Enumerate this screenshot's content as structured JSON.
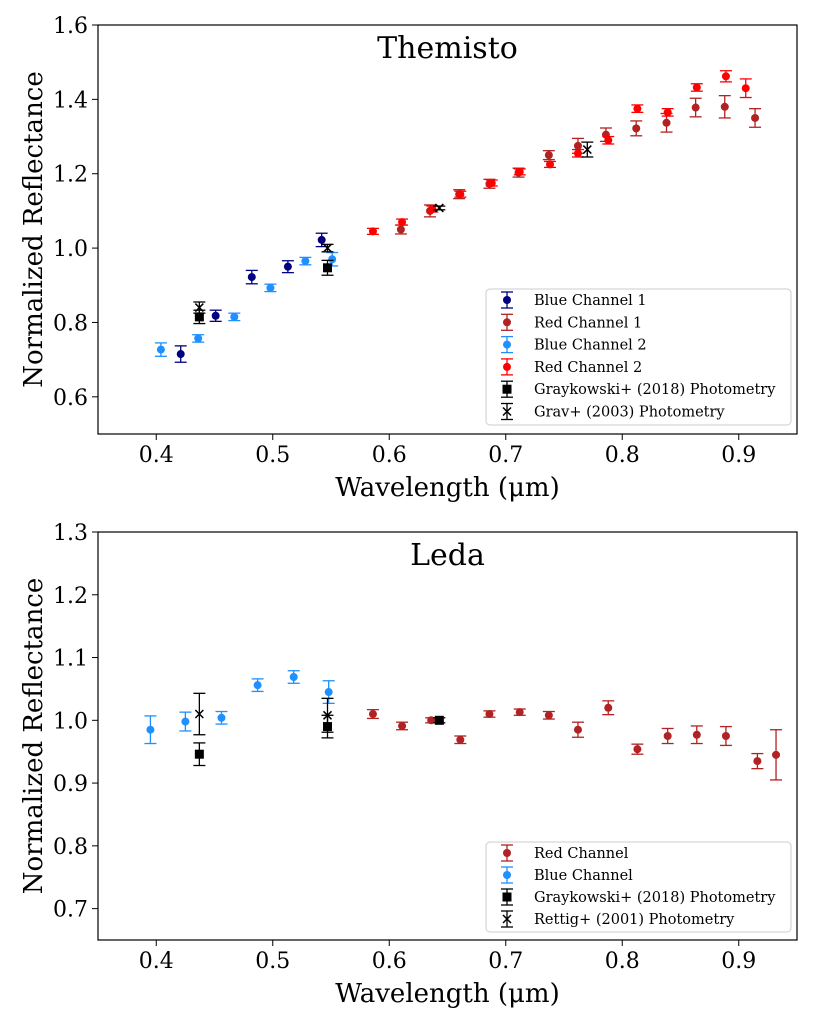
{
  "chart_data": [
    {
      "type": "scatter",
      "title": "Themisto",
      "xlabel": "Wavelength (μm)",
      "ylabel": "Normalized Reflectance",
      "xlim": [
        0.35,
        0.95
      ],
      "ylim": [
        0.5,
        1.6
      ],
      "xticks": [
        "0.4",
        "0.5",
        "0.6",
        "0.7",
        "0.8",
        "0.9"
      ],
      "yticks": [
        "0.6",
        "0.8",
        "1.0",
        "1.2",
        "1.4",
        "1.6"
      ],
      "grid": false,
      "legend_position": "lower-right",
      "series": [
        {
          "name": "Blue Channel 1",
          "color": "#000080",
          "marker": "circle",
          "points": [
            [
              0.421,
              0.715,
              0.022
            ],
            [
              0.451,
              0.818,
              0.015
            ],
            [
              0.482,
              0.922,
              0.018
            ],
            [
              0.513,
              0.95,
              0.016
            ],
            [
              0.542,
              1.022,
              0.018
            ]
          ]
        },
        {
          "name": "Red Channel 1",
          "color": "#b22222",
          "marker": "circle",
          "points": [
            [
              0.61,
              1.05,
              0.012
            ],
            [
              0.635,
              1.1,
              0.016
            ],
            [
              0.66,
              1.145,
              0.012
            ],
            [
              0.686,
              1.173,
              0.012
            ],
            [
              0.711,
              1.203,
              0.012
            ],
            [
              0.737,
              1.25,
              0.012
            ],
            [
              0.762,
              1.275,
              0.02
            ],
            [
              0.786,
              1.305,
              0.018
            ],
            [
              0.812,
              1.322,
              0.02
            ],
            [
              0.838,
              1.337,
              0.025
            ],
            [
              0.863,
              1.378,
              0.025
            ],
            [
              0.888,
              1.38,
              0.03
            ],
            [
              0.914,
              1.35,
              0.025
            ]
          ]
        },
        {
          "name": "Blue Channel 2",
          "color": "#1e90ff",
          "marker": "circle",
          "points": [
            [
              0.404,
              0.727,
              0.018
            ],
            [
              0.436,
              0.757,
              0.01
            ],
            [
              0.467,
              0.815,
              0.01
            ],
            [
              0.498,
              0.893,
              0.01
            ],
            [
              0.528,
              0.965,
              0.01
            ],
            [
              0.551,
              0.97,
              0.018
            ]
          ]
        },
        {
          "name": "Red Channel 2",
          "color": "#ff0000",
          "marker": "circle",
          "points": [
            [
              0.586,
              1.045,
              0.008
            ],
            [
              0.611,
              1.07,
              0.008
            ],
            [
              0.637,
              1.105,
              0.008
            ],
            [
              0.661,
              1.145,
              0.008
            ],
            [
              0.688,
              1.175,
              0.008
            ],
            [
              0.712,
              1.205,
              0.008
            ],
            [
              0.738,
              1.225,
              0.008
            ],
            [
              0.762,
              1.255,
              0.01
            ],
            [
              0.788,
              1.29,
              0.01
            ],
            [
              0.813,
              1.375,
              0.01
            ],
            [
              0.839,
              1.365,
              0.01
            ],
            [
              0.864,
              1.432,
              0.01
            ],
            [
              0.889,
              1.462,
              0.015
            ],
            [
              0.906,
              1.43,
              0.025
            ]
          ]
        },
        {
          "name": "Graykowski+ (2018) Photometry",
          "color": "#000000",
          "marker": "square",
          "points": [
            [
              0.437,
              0.815,
              0.018
            ],
            [
              0.547,
              0.947,
              0.02
            ]
          ]
        },
        {
          "name": "Grav+ (2003) Photometry",
          "color": "#000000",
          "marker": "x",
          "points": [
            [
              0.437,
              0.84,
              0.015
            ],
            [
              0.547,
              1.0,
              0.01
            ],
            [
              0.643,
              1.108,
              0.005
            ],
            [
              0.77,
              1.265,
              0.02
            ]
          ]
        }
      ]
    },
    {
      "type": "scatter",
      "title": "Leda",
      "xlabel": "Wavelength (μm)",
      "ylabel": "Normalized Reflectance",
      "xlim": [
        0.35,
        0.95
      ],
      "ylim": [
        0.65,
        1.3
      ],
      "xticks": [
        "0.4",
        "0.5",
        "0.6",
        "0.7",
        "0.8",
        "0.9"
      ],
      "yticks": [
        "0.7",
        "0.8",
        "0.9",
        "1.0",
        "1.1",
        "1.2",
        "1.3"
      ],
      "grid": false,
      "legend_position": "lower-right",
      "series": [
        {
          "name": "Red Channel",
          "color": "#b22222",
          "marker": "circle",
          "points": [
            [
              0.586,
              1.01,
              0.007
            ],
            [
              0.611,
              0.991,
              0.006
            ],
            [
              0.636,
              1.0,
              0.004
            ],
            [
              0.661,
              0.969,
              0.006
            ],
            [
              0.686,
              1.01,
              0.005
            ],
            [
              0.712,
              1.013,
              0.005
            ],
            [
              0.737,
              1.008,
              0.006
            ],
            [
              0.762,
              0.985,
              0.012
            ],
            [
              0.788,
              1.02,
              0.011
            ],
            [
              0.813,
              0.954,
              0.008
            ],
            [
              0.839,
              0.975,
              0.012
            ],
            [
              0.864,
              0.977,
              0.014
            ],
            [
              0.889,
              0.975,
              0.015
            ],
            [
              0.916,
              0.935,
              0.012
            ],
            [
              0.932,
              0.945,
              0.04
            ]
          ]
        },
        {
          "name": "Blue Channel",
          "color": "#1e90ff",
          "marker": "circle",
          "points": [
            [
              0.395,
              0.985,
              0.022
            ],
            [
              0.425,
              0.998,
              0.015
            ],
            [
              0.456,
              1.004,
              0.01
            ],
            [
              0.487,
              1.056,
              0.01
            ],
            [
              0.518,
              1.069,
              0.01
            ],
            [
              0.548,
              1.045,
              0.018
            ]
          ]
        },
        {
          "name": "Graykowski+ (2018) Photometry",
          "color": "#000000",
          "marker": "square",
          "points": [
            [
              0.437,
              0.946,
              0.018
            ],
            [
              0.547,
              0.99,
              0.018
            ],
            [
              0.643,
              1.0,
              0.004
            ]
          ]
        },
        {
          "name": "Rettig+ (2001) Photometry",
          "color": "#000000",
          "marker": "x",
          "points": [
            [
              0.437,
              1.01,
              0.033
            ],
            [
              0.547,
              1.008,
              0.027
            ]
          ]
        }
      ]
    }
  ]
}
